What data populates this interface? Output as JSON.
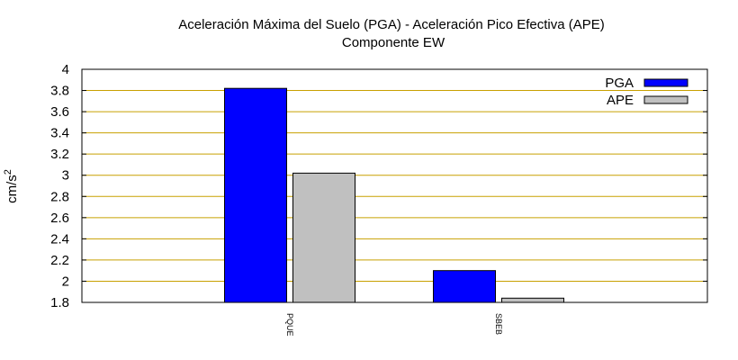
{
  "chart_data": {
    "type": "bar",
    "title": "Aceleración Máxima del Suelo (PGA) -  Aceleración Pico Efectiva (APE)",
    "subtitle": "Componente EW",
    "xlabel": "",
    "ylabel": "cm/s",
    "ylabel_superscript": "2",
    "ylim": [
      1.8,
      4
    ],
    "yticks": [
      "1.8",
      "2",
      "2.2",
      "2.4",
      "2.6",
      "2.8",
      "3",
      "3.2",
      "3.4",
      "3.6",
      "3.8",
      "4"
    ],
    "categories": [
      "PQUE",
      "SBEB"
    ],
    "series": [
      {
        "name": "PGA",
        "values": [
          3.82,
          2.1
        ],
        "color": "#0000ff"
      },
      {
        "name": "APE",
        "values": [
          3.02,
          1.84
        ],
        "color": "#c0c0c0"
      }
    ],
    "grid": true,
    "grid_color": "#c8a000",
    "legend_position": "top-right"
  }
}
